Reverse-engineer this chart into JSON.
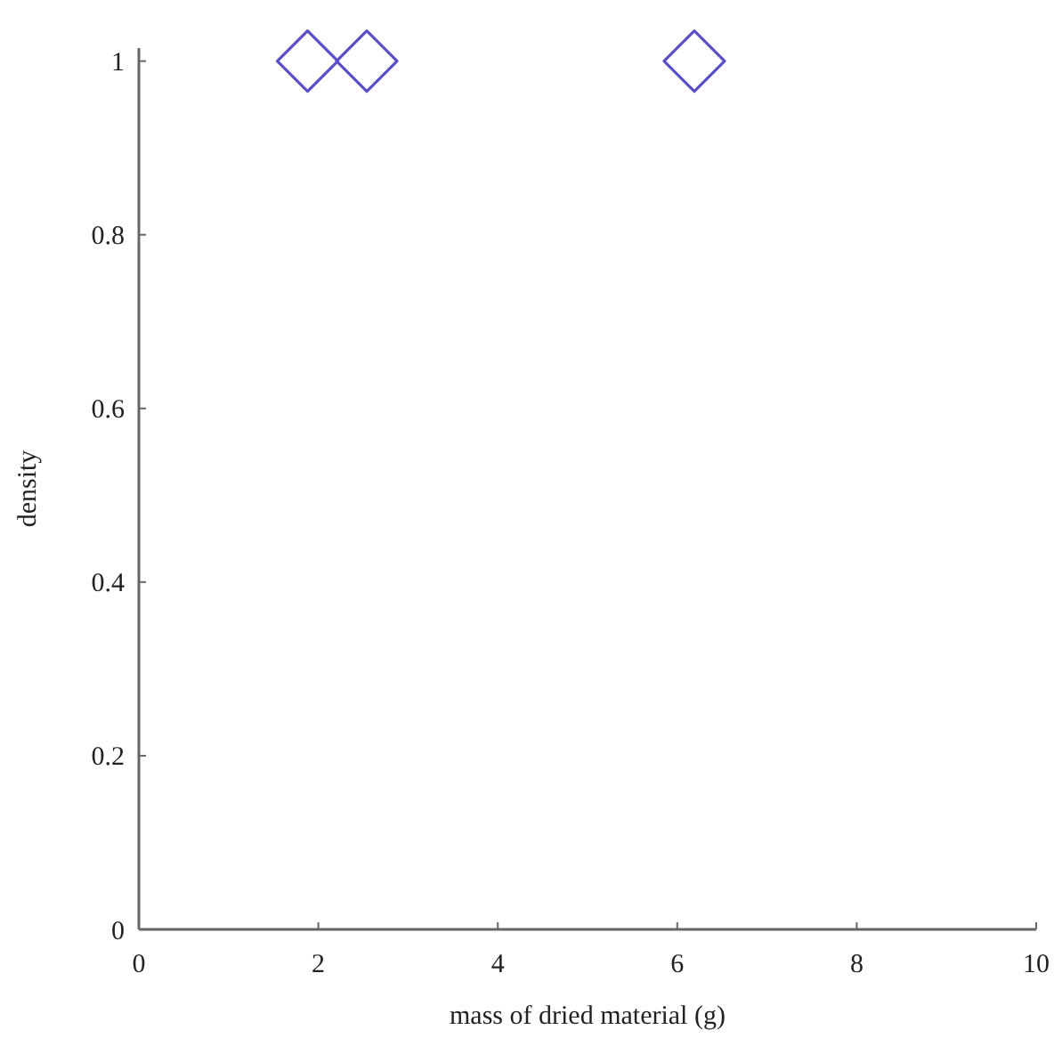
{
  "chart_data": {
    "type": "scatter",
    "xlabel": "mass of dried material (g)",
    "ylabel": "density",
    "x": [
      1.88,
      2.54,
      6.19
    ],
    "series": [
      {
        "color": "#5a4fc8",
        "values": [
          1,
          1,
          1
        ]
      }
    ],
    "xlim": [
      0,
      10
    ],
    "ylim": [
      0,
      1.015
    ],
    "xticks": [
      0,
      2,
      4,
      6,
      8,
      10
    ],
    "yticks": [
      0,
      0.2,
      0.4,
      0.6,
      0.8,
      1
    ],
    "marker": "diamond",
    "grid": false
  }
}
